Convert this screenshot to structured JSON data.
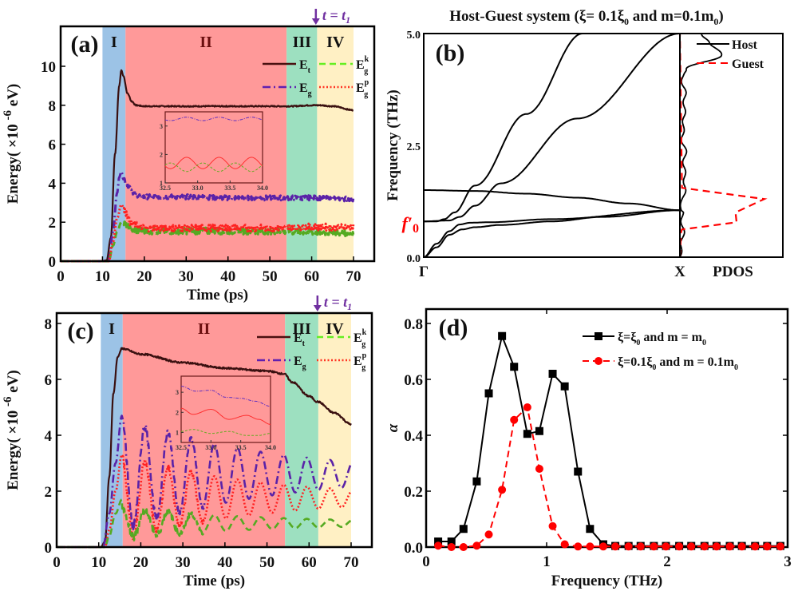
{
  "chart_data": [
    {
      "id": "a",
      "type": "line",
      "panel_label": "(a)",
      "xlabel": "Time (ps)",
      "ylabel": "Energy( ×10 -6 eV)",
      "xlim": [
        0,
        73
      ],
      "ylim": [
        0,
        11.5
      ],
      "xticks": [
        0,
        10,
        20,
        30,
        40,
        50,
        60,
        70
      ],
      "yticks": [
        0,
        2,
        4,
        6,
        8,
        10
      ],
      "marker_label": "t = t1",
      "marker_x": 61,
      "regions": [
        {
          "label": "I",
          "x0": 10,
          "x1": 15.5,
          "color": "#9cc3e6"
        },
        {
          "label": "II",
          "x0": 15.5,
          "x1": 54,
          "color": "#ff9999"
        },
        {
          "label": "III",
          "x0": 54,
          "x1": 61.3,
          "color": "#9de0c0"
        },
        {
          "label": "IV",
          "x0": 61.3,
          "x1": 70,
          "color": "#fff0c4"
        }
      ],
      "legend": [
        {
          "label": "E",
          "sub": "t",
          "sup": "",
          "style": "solid",
          "color": "#4a1010"
        },
        {
          "label": "E",
          "sub": "g",
          "sup": "",
          "style": "dashdot",
          "color": "#6020b0"
        },
        {
          "label": "E",
          "sub": "g",
          "sup": "k",
          "style": "dashed",
          "color": "#66ee22"
        },
        {
          "label": "E",
          "sub": "g",
          "sup": "p",
          "style": "dotted",
          "color": "#ff3322"
        }
      ],
      "series": [
        {
          "name": "Et",
          "color": "#3a1010",
          "x": [
            0,
            10,
            11,
            12,
            13,
            14,
            14.5,
            15,
            16,
            17,
            18,
            20,
            30,
            40,
            50,
            55,
            60,
            62,
            65,
            70
          ],
          "y": [
            0,
            0,
            0.05,
            1.2,
            5.5,
            9.0,
            9.8,
            9.5,
            8.6,
            8.2,
            8.0,
            7.95,
            7.95,
            7.95,
            7.95,
            7.95,
            8.0,
            8.0,
            7.95,
            7.75
          ]
        },
        {
          "name": "Eg",
          "color": "#5a22a8",
          "x": [
            0,
            10,
            11.5,
            12.5,
            13.5,
            14,
            14.5,
            15,
            16,
            18,
            20,
            25,
            30,
            40,
            50,
            60,
            70
          ],
          "y": [
            0,
            0,
            0.1,
            1.5,
            3.5,
            4.3,
            4.6,
            4.2,
            3.9,
            3.4,
            3.3,
            3.3,
            3.3,
            3.25,
            3.25,
            3.25,
            3.2
          ]
        },
        {
          "name": "Egk",
          "color": "#55aa22",
          "x": [
            0,
            11.5,
            12.5,
            13.5,
            14.5,
            15.5,
            17,
            20,
            30,
            40,
            50,
            60,
            70
          ],
          "y": [
            0,
            0,
            0.8,
            1.5,
            2.0,
            1.9,
            1.6,
            1.55,
            1.55,
            1.55,
            1.55,
            1.5,
            1.45
          ]
        },
        {
          "name": "Egp",
          "color": "#ff2020",
          "x": [
            0,
            11.5,
            12.5,
            13.5,
            14.5,
            15.5,
            17,
            20,
            30,
            40,
            50,
            60,
            70
          ],
          "y": [
            0,
            0,
            1.0,
            2.2,
            2.9,
            2.5,
            1.9,
            1.7,
            1.7,
            1.7,
            1.7,
            1.75,
            1.75
          ]
        }
      ],
      "inset": {
        "xlim": [
          32.5,
          34.0
        ],
        "ylim": [
          1,
          3.5
        ],
        "xticks": [
          "32.5",
          "33.0",
          "33.5",
          "34.0"
        ],
        "yticks": [
          "1",
          "2",
          "3"
        ],
        "series": [
          {
            "name": "Eg",
            "color": "#6030c0",
            "mean": 3.25,
            "amp": 0.06,
            "period": 0.5
          },
          {
            "name": "Egp",
            "color": "#ff3030",
            "mean": 1.7,
            "amp": 0.2,
            "period": 0.5
          },
          {
            "name": "Egk",
            "color": "#66aa22",
            "mean": 1.55,
            "amp": 0.15,
            "period": 0.5
          }
        ]
      }
    },
    {
      "id": "b",
      "type": "line",
      "panel_label": "(b)",
      "title": "Host-Guest system (ξ= 0.1ξ0 and m=0.1m0)",
      "ylabel": "Frequency (THz)",
      "ylim": [
        0,
        5
      ],
      "yticks": [
        "0.0",
        "2.5",
        "5.0"
      ],
      "xticks": [
        "Γ",
        "X"
      ],
      "pdos_label": "PDOS",
      "f0_label": "f′0",
      "f0_value": 0.79,
      "legend": [
        {
          "label": "Host",
          "style": "solid",
          "color": "#000000"
        },
        {
          "label": "Guest",
          "style": "dashed",
          "color": "#ff0000"
        }
      ],
      "bands": [
        {
          "name": "acoustic-low",
          "k": [
            0,
            0.05,
            0.1,
            0.15,
            0.2,
            0.3,
            0.5,
            0.7,
            1.0
          ],
          "f": [
            0,
            0.22,
            0.5,
            0.62,
            0.67,
            0.72,
            0.8,
            0.9,
            1.05
          ]
        },
        {
          "name": "acoustic-mid",
          "k": [
            0,
            0.05,
            0.1,
            0.14,
            0.18,
            0.25,
            0.5,
            1.0
          ],
          "f": [
            0,
            0.3,
            0.58,
            0.73,
            0.77,
            0.78,
            0.85,
            1.05
          ]
        },
        {
          "name": "flat-guest",
          "k": [
            0,
            0.2,
            0.4,
            0.6,
            0.8,
            1.0
          ],
          "f": [
            1.5,
            1.48,
            1.42,
            1.33,
            1.2,
            1.05
          ]
        },
        {
          "name": "steep-1",
          "k": [
            0,
            0.05,
            0.08,
            0.12,
            0.2,
            0.4,
            0.62
          ],
          "f": [
            0.8,
            0.8,
            0.85,
            1.0,
            1.6,
            3.2,
            5.0
          ]
        },
        {
          "name": "steep-2",
          "k": [
            0,
            0.1,
            0.14,
            0.2,
            0.3,
            0.6,
            1.0
          ],
          "f": [
            0.8,
            0.82,
            0.9,
            1.15,
            1.65,
            3.1,
            5.0
          ]
        }
      ],
      "pdos_host": {
        "f": [
          0,
          0.5,
          1.0,
          1.05,
          1.3,
          1.6,
          2.0,
          2.4,
          2.7,
          3.0,
          3.3,
          3.6,
          3.9,
          4.1,
          4.2,
          4.5,
          4.8,
          5.0
        ],
        "d": [
          0,
          0.03,
          0.02,
          0.0,
          0.03,
          0.05,
          0.04,
          0.05,
          0.02,
          0.04,
          0.04,
          0.05,
          0.03,
          0.03,
          0.05,
          0.4,
          0.3,
          0.2
        ]
      },
      "pdos_guest": {
        "f": [
          0,
          0.2,
          0.6,
          1.5,
          1.8,
          2.0,
          3.0,
          5.0
        ],
        "d": [
          0,
          0.02,
          0.08,
          0.7,
          0.95,
          0.02,
          0.0,
          0.0
        ]
      }
    },
    {
      "id": "c",
      "type": "line",
      "panel_label": "(c)",
      "xlabel": "Time (ps)",
      "ylabel": "Energy( ×10 -6 eV)",
      "xlim": [
        0,
        73
      ],
      "ylim": [
        0,
        8.4
      ],
      "xticks": [
        0,
        10,
        20,
        30,
        40,
        50,
        60,
        70
      ],
      "yticks": [
        0,
        2,
        4,
        6,
        8
      ],
      "marker_label": "t = t1",
      "marker_x": 62,
      "regions": [
        {
          "label": "I",
          "x0": 10.5,
          "x1": 15.7,
          "color": "#9cc3e6"
        },
        {
          "label": "II",
          "x0": 15.7,
          "x1": 54.3,
          "color": "#ff9999"
        },
        {
          "label": "III",
          "x0": 54.3,
          "x1": 62.2,
          "color": "#9de0c0"
        },
        {
          "label": "IV",
          "x0": 62.2,
          "x1": 70,
          "color": "#fff0c4"
        }
      ],
      "legend": [
        {
          "label": "E",
          "sub": "t",
          "sup": "",
          "style": "solid",
          "color": "#4a1010"
        },
        {
          "label": "E",
          "sub": "g",
          "sup": "",
          "style": "dashdot",
          "color": "#6020b0"
        },
        {
          "label": "E",
          "sub": "g",
          "sup": "k",
          "style": "dashed",
          "color": "#66ee22"
        },
        {
          "label": "E",
          "sub": "g",
          "sup": "p",
          "style": "dotted",
          "color": "#ff3322"
        }
      ],
      "series": [
        {
          "name": "Et",
          "color": "#3a1010",
          "x": [
            0,
            10.5,
            11.5,
            12.5,
            13.5,
            14.5,
            15.5,
            20,
            30,
            40,
            50,
            54,
            56,
            60,
            62,
            66,
            70
          ],
          "y": [
            0,
            0,
            0.2,
            2.5,
            5.5,
            6.8,
            7.1,
            6.9,
            6.6,
            6.4,
            6.3,
            6.2,
            5.9,
            5.4,
            5.2,
            4.8,
            4.4
          ]
        },
        {
          "name": "Eg",
          "color": "#5a22a8",
          "x0": 15.5,
          "mean": 2.6,
          "amp_start": 2.0,
          "amp_end": 0.45,
          "period": 5.5,
          "rise": [
            [
              11,
              0
            ],
            [
              12.5,
              1.2
            ],
            [
              14,
              3.0
            ],
            [
              15.5,
              4.7
            ]
          ],
          "end": 70
        },
        {
          "name": "Egp",
          "color": "#ff2020",
          "x0": 15.5,
          "mean": 1.75,
          "amp_start": 1.5,
          "amp_end": 0.3,
          "period": 5.5,
          "rise": [
            [
              11.5,
              0
            ],
            [
              12.5,
              0.6
            ],
            [
              14,
              2.0
            ],
            [
              15.5,
              3.3
            ]
          ],
          "end": 70
        },
        {
          "name": "Egk",
          "color": "#55aa22",
          "x0": 15.5,
          "mean": 0.85,
          "amp_start": 0.55,
          "amp_end": 0.12,
          "period": 5.5,
          "rise": [
            [
              11.5,
              0
            ],
            [
              12.5,
              0.4
            ],
            [
              14,
              1.2
            ],
            [
              15.5,
              1.7
            ]
          ],
          "end": 70
        }
      ],
      "inset": {
        "xlim": [
          32.5,
          34.0
        ],
        "ylim": [
          0.5,
          3.8
        ],
        "xticks": [
          "32.5",
          "33.0",
          "33.5",
          "34.0"
        ],
        "yticks": [
          "1",
          "2",
          "3"
        ],
        "series": [
          {
            "name": "Eg",
            "color": "#6030c0",
            "x": [
              32.5,
              32.75,
              33.0,
              33.25,
              33.5,
              33.75,
              34.0
            ],
            "y": [
              3.3,
              3.05,
              3.1,
              2.75,
              2.7,
              2.55,
              2.3
            ]
          },
          {
            "name": "Egp",
            "color": "#ff3030",
            "x": [
              32.5,
              32.7,
              33.0,
              33.3,
              33.6,
              33.8,
              34.0
            ],
            "y": [
              2.2,
              1.9,
              2.15,
              1.65,
              1.85,
              1.65,
              1.4
            ]
          },
          {
            "name": "Egk",
            "color": "#66aa22",
            "x": [
              32.5,
              32.7,
              33.0,
              33.3,
              33.6,
              33.8,
              34.0
            ],
            "y": [
              1.05,
              1.15,
              0.95,
              1.05,
              0.85,
              0.85,
              0.95
            ]
          }
        ]
      }
    },
    {
      "id": "d",
      "type": "line",
      "panel_label": "(d)",
      "xlabel": "Frequency (THz)",
      "ylabel": "α",
      "xlim": [
        0,
        3
      ],
      "ylim": [
        0,
        0.85
      ],
      "xticks": [
        "0",
        "1",
        "2",
        "3"
      ],
      "yticks": [
        "0.0",
        "0.2",
        "0.4",
        "0.6",
        "0.8"
      ],
      "legend_position": "top-right",
      "series": [
        {
          "name": "ξ=ξ0 and m = m0",
          "marker": "square",
          "style": "solid",
          "color": "#000000",
          "x": [
            0.1,
            0.21,
            0.31,
            0.42,
            0.52,
            0.63,
            0.73,
            0.84,
            0.94,
            1.05,
            1.15,
            1.26,
            1.36,
            1.47,
            1.57,
            1.68,
            1.78,
            1.89,
            1.99,
            2.1,
            2.2,
            2.31,
            2.41,
            2.52,
            2.62,
            2.73,
            2.83,
            2.94
          ],
          "y": [
            0.02,
            0.02,
            0.065,
            0.235,
            0.55,
            0.755,
            0.645,
            0.405,
            0.415,
            0.62,
            0.575,
            0.27,
            0.065,
            0.01,
            0.004,
            0.004,
            0.004,
            0.004,
            0.004,
            0.004,
            0.004,
            0.004,
            0.004,
            0.004,
            0.004,
            0.004,
            0.004,
            0.004
          ]
        },
        {
          "name": "ξ=0.1ξ0 and m = 0.1m0",
          "marker": "circle",
          "style": "dashed",
          "color": "#ff0000",
          "x": [
            0.1,
            0.21,
            0.31,
            0.42,
            0.52,
            0.63,
            0.73,
            0.84,
            0.94,
            1.05,
            1.15,
            1.26,
            1.36,
            1.47,
            1.57,
            1.68,
            1.78,
            1.89,
            1.99,
            2.1,
            2.2,
            2.31,
            2.41,
            2.52,
            2.62,
            2.73,
            2.83,
            2.94
          ],
          "y": [
            0.005,
            0.0,
            0.0,
            0.005,
            0.045,
            0.205,
            0.455,
            0.5,
            0.28,
            0.075,
            0.01,
            0.002,
            0.002,
            0.002,
            0.002,
            0.002,
            0.002,
            0.002,
            0.002,
            0.002,
            0.002,
            0.002,
            0.002,
            0.002,
            0.002,
            0.002,
            0.002,
            0.002
          ]
        }
      ]
    }
  ],
  "legend_d": {
    "s1_pre": "ξ=ξ",
    "s1_sub": "0",
    "s1_post": " and m = m",
    "s1_sub2": "0",
    "s2_pre": "ξ=0.1ξ",
    "s2_sub": "0",
    "s2_post": " and m = 0.1m",
    "s2_sub2": "0"
  },
  "title_b": {
    "pre": "Host-Guest system (ξ= 0.1ξ",
    "sub": "0",
    "mid": " and m=0.1m",
    "sub2": "0",
    "post": ")"
  }
}
